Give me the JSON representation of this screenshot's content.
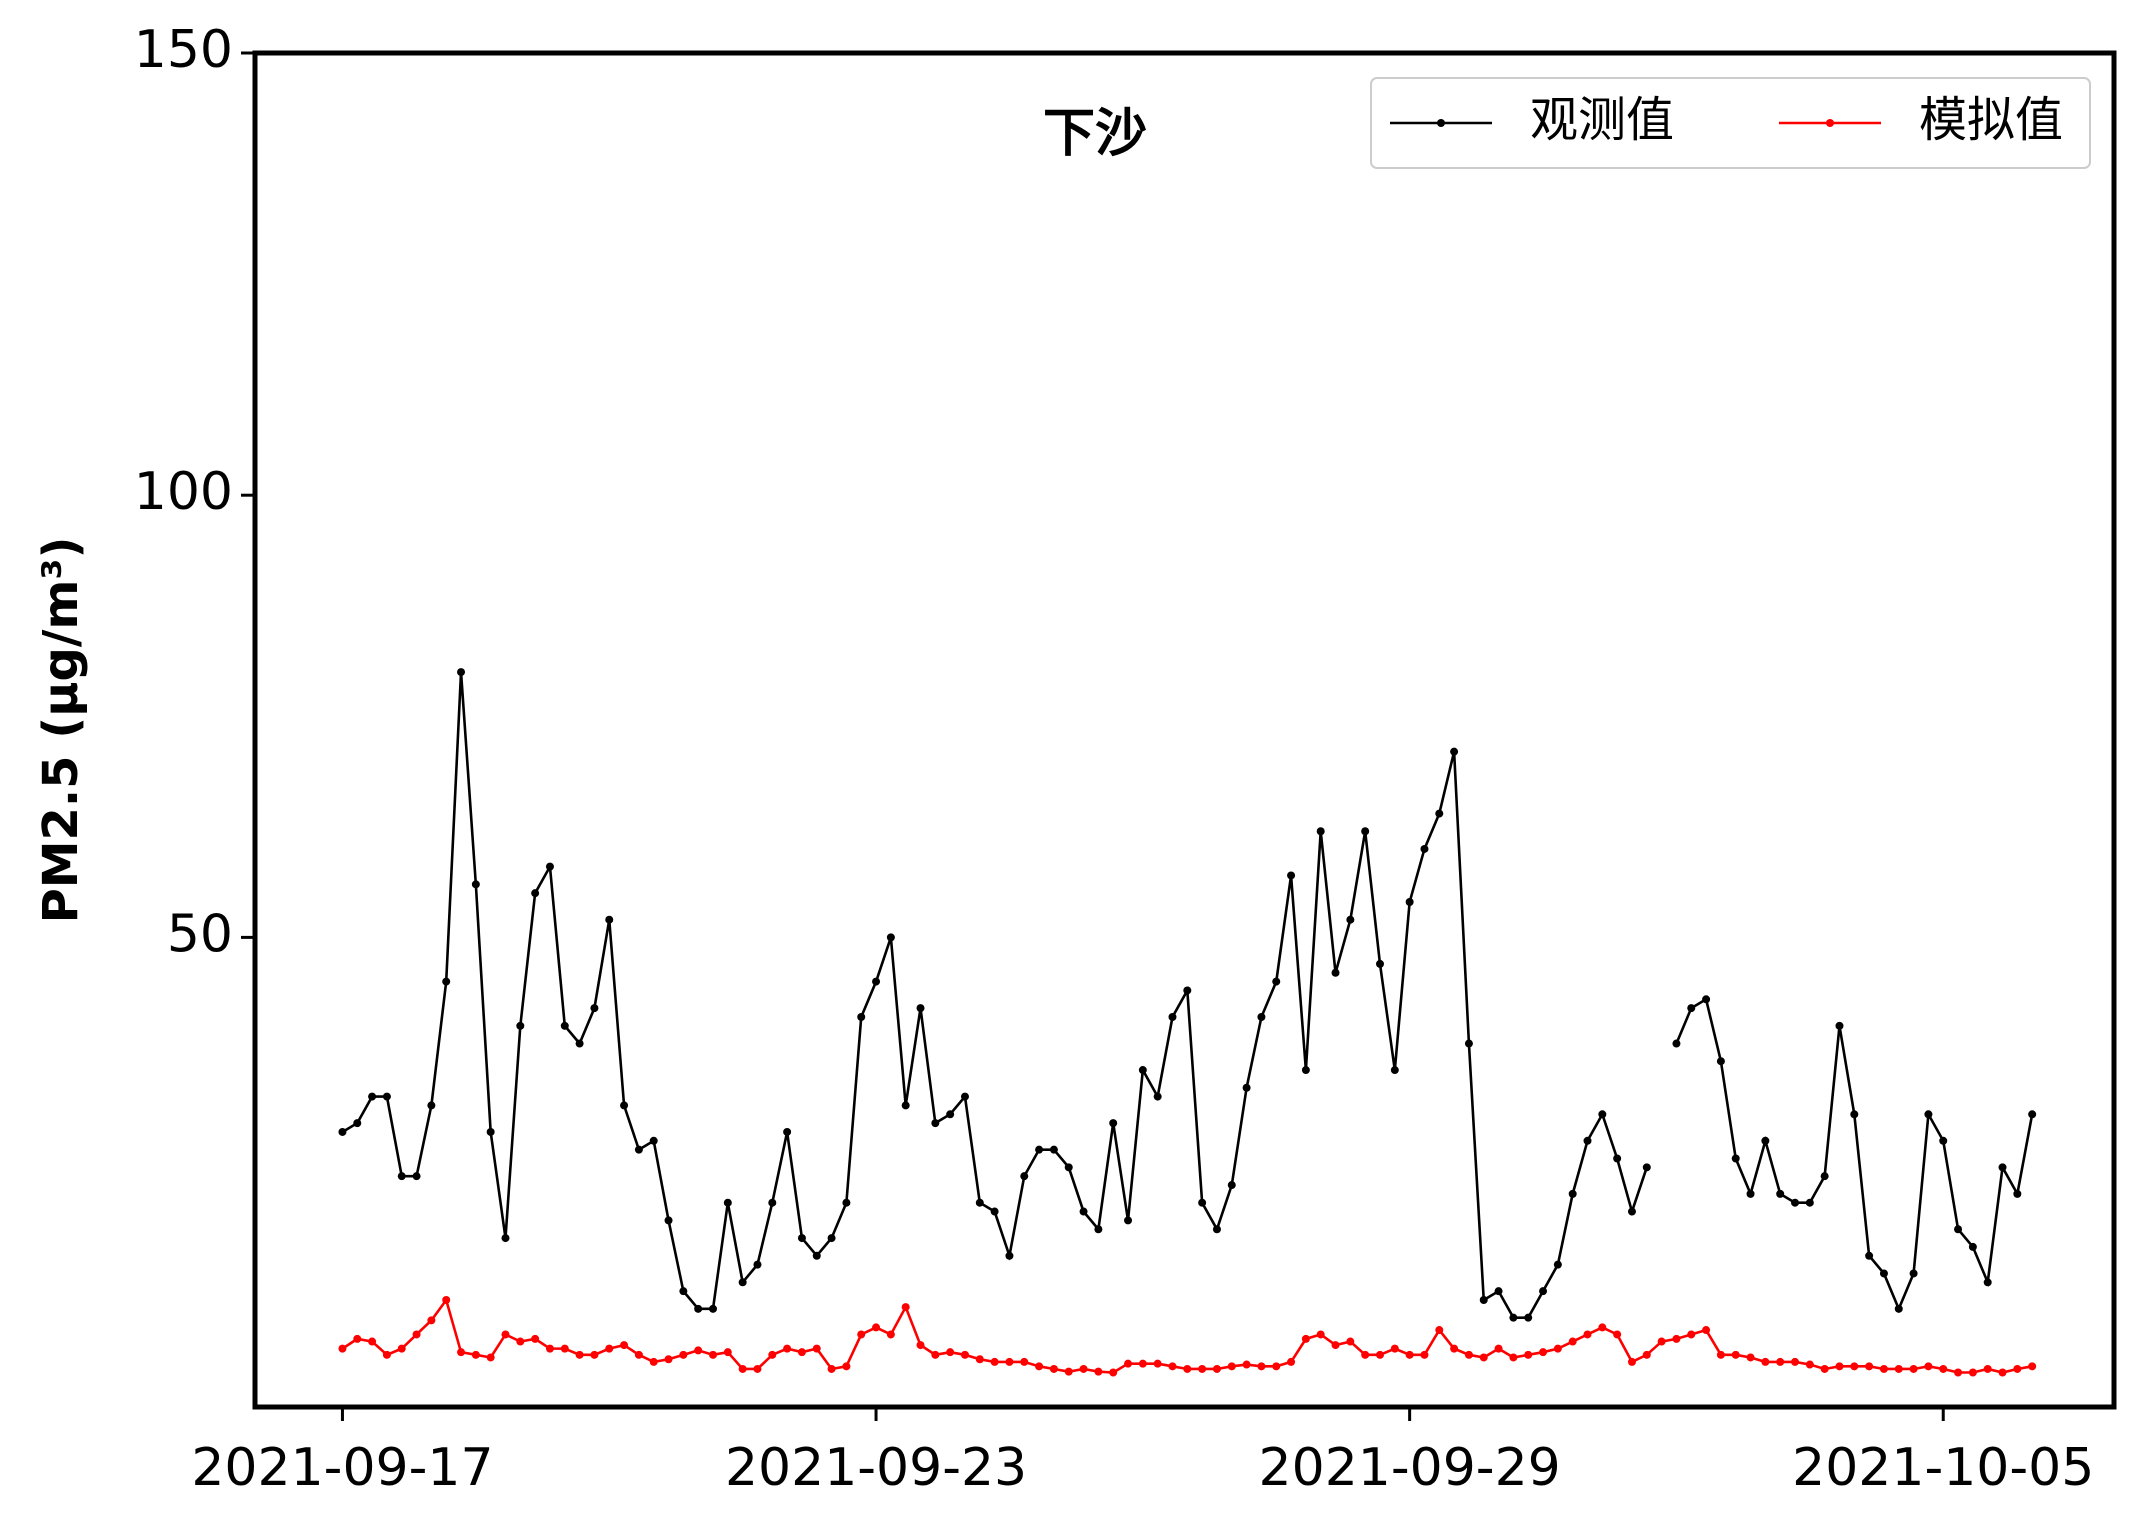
{
  "chart_data": {
    "type": "line",
    "title": "下沙",
    "y_label": "PM2.5 (μg/m³)",
    "x": [
      "2021-09-17 00:00",
      "2021-09-17 04:00",
      "2021-09-17 08:00",
      "2021-09-17 12:00",
      "2021-09-17 16:00",
      "2021-09-17 20:00",
      "2021-09-18 00:00",
      "2021-09-18 04:00",
      "2021-09-18 08:00",
      "2021-09-18 12:00",
      "2021-09-18 16:00",
      "2021-09-18 20:00",
      "2021-09-19 00:00",
      "2021-09-19 04:00",
      "2021-09-19 08:00",
      "2021-09-19 12:00",
      "2021-09-19 16:00",
      "2021-09-19 20:00",
      "2021-09-20 00:00",
      "2021-09-20 04:00",
      "2021-09-20 08:00",
      "2021-09-20 12:00",
      "2021-09-20 16:00",
      "2021-09-20 20:00",
      "2021-09-21 00:00",
      "2021-09-21 04:00",
      "2021-09-21 08:00",
      "2021-09-21 12:00",
      "2021-09-21 16:00",
      "2021-09-21 20:00",
      "2021-09-22 00:00",
      "2021-09-22 04:00",
      "2021-09-22 08:00",
      "2021-09-22 12:00",
      "2021-09-22 16:00",
      "2021-09-22 20:00",
      "2021-09-23 00:00",
      "2021-09-23 04:00",
      "2021-09-23 08:00",
      "2021-09-23 12:00",
      "2021-09-23 16:00",
      "2021-09-23 20:00",
      "2021-09-24 00:00",
      "2021-09-24 04:00",
      "2021-09-24 08:00",
      "2021-09-24 12:00",
      "2021-09-24 16:00",
      "2021-09-24 20:00",
      "2021-09-25 00:00",
      "2021-09-25 04:00",
      "2021-09-25 08:00",
      "2021-09-25 12:00",
      "2021-09-25 16:00",
      "2021-09-25 20:00",
      "2021-09-26 00:00",
      "2021-09-26 04:00",
      "2021-09-26 08:00",
      "2021-09-26 12:00",
      "2021-09-26 16:00",
      "2021-09-26 20:00",
      "2021-09-27 00:00",
      "2021-09-27 04:00",
      "2021-09-27 08:00",
      "2021-09-27 12:00",
      "2021-09-27 16:00",
      "2021-09-27 20:00",
      "2021-09-28 00:00",
      "2021-09-28 04:00",
      "2021-09-28 08:00",
      "2021-09-28 12:00",
      "2021-09-28 16:00",
      "2021-09-28 20:00",
      "2021-09-29 00:00",
      "2021-09-29 04:00",
      "2021-09-29 08:00",
      "2021-09-29 12:00",
      "2021-09-29 16:00",
      "2021-09-29 20:00",
      "2021-09-30 00:00",
      "2021-09-30 04:00",
      "2021-09-30 08:00",
      "2021-09-30 12:00",
      "2021-09-30 16:00",
      "2021-09-30 20:00",
      "2021-10-01 00:00",
      "2021-10-01 04:00",
      "2021-10-01 08:00",
      "2021-10-01 12:00",
      "2021-10-01 16:00",
      "2021-10-01 20:00",
      "2021-10-02 00:00",
      "2021-10-02 04:00",
      "2021-10-02 08:00",
      "2021-10-02 12:00",
      "2021-10-02 16:00",
      "2021-10-02 20:00",
      "2021-10-03 00:00",
      "2021-10-03 04:00",
      "2021-10-03 08:00",
      "2021-10-03 12:00",
      "2021-10-03 16:00",
      "2021-10-03 20:00",
      "2021-10-04 00:00",
      "2021-10-04 04:00",
      "2021-10-04 08:00",
      "2021-10-04 12:00",
      "2021-10-04 16:00",
      "2021-10-04 20:00",
      "2021-10-05 00:00",
      "2021-10-05 04:00",
      "2021-10-05 08:00",
      "2021-10-05 12:00",
      "2021-10-05 16:00",
      "2021-10-05 20:00",
      "2021-10-06 00:00"
    ],
    "series": [
      {
        "name": "观测值",
        "color": "#000000",
        "values": [
          28,
          29,
          32,
          32,
          23,
          23,
          31,
          45,
          80,
          56,
          28,
          16,
          40,
          55,
          58,
          40,
          38,
          42,
          52,
          31,
          26,
          27,
          18,
          10,
          8,
          8,
          20,
          11,
          13,
          20,
          28,
          16,
          14,
          16,
          20,
          41,
          45,
          50,
          31,
          42,
          29,
          30,
          32,
          20,
          19,
          14,
          23,
          26,
          26,
          24,
          19,
          17,
          29,
          18,
          35,
          32,
          41,
          44,
          20,
          17,
          22,
          33,
          41,
          45,
          57,
          35,
          62,
          46,
          52,
          62,
          47,
          35,
          54,
          60,
          64,
          71,
          38,
          9,
          10,
          7,
          7,
          10,
          13,
          21,
          27,
          30,
          25,
          19,
          24,
          null,
          38,
          42,
          43,
          36,
          25,
          21,
          27,
          21,
          20,
          20,
          23,
          40,
          30,
          14,
          12,
          8,
          12,
          30,
          27,
          17,
          15,
          11,
          24,
          21,
          30
        ]
      },
      {
        "name": "模拟值",
        "color": "#ff0000",
        "values": [
          3.5,
          4.6,
          4.3,
          2.8,
          3.5,
          5.1,
          6.7,
          9.0,
          3.1,
          2.8,
          2.5,
          5.1,
          4.3,
          4.6,
          3.5,
          3.5,
          2.8,
          2.8,
          3.5,
          3.9,
          2.8,
          2.0,
          2.3,
          2.8,
          3.3,
          2.8,
          3.1,
          1.2,
          1.2,
          2.8,
          3.5,
          3.1,
          3.5,
          1.2,
          1.5,
          5.1,
          5.9,
          5.1,
          8.2,
          3.9,
          2.8,
          3.1,
          2.8,
          2.3,
          2.0,
          2.0,
          2.0,
          1.5,
          1.2,
          0.9,
          1.2,
          0.9,
          0.8,
          1.8,
          1.8,
          1.8,
          1.5,
          1.2,
          1.2,
          1.2,
          1.5,
          1.7,
          1.5,
          1.5,
          2.0,
          4.6,
          5.1,
          3.9,
          4.3,
          2.8,
          2.8,
          3.5,
          2.8,
          2.8,
          5.6,
          3.5,
          2.8,
          2.5,
          3.5,
          2.5,
          2.8,
          3.1,
          3.5,
          4.3,
          5.1,
          5.9,
          5.1,
          2.0,
          2.8,
          4.3,
          4.6,
          5.1,
          5.6,
          2.8,
          2.8,
          2.5,
          2.0,
          2.0,
          2.0,
          1.7,
          1.2,
          1.5,
          1.5,
          1.5,
          1.2,
          1.2,
          1.2,
          1.5,
          1.2,
          0.8,
          0.8,
          1.2,
          0.8,
          1.2,
          1.5
        ]
      }
    ],
    "xlim": [
      "2021-09-16 00:24",
      "2021-10-06 22:05"
    ],
    "xticks": [
      "2021-09-17",
      "2021-09-23",
      "2021-09-29",
      "2021-10-05"
    ],
    "ylim": [
      -3.1,
      150
    ],
    "yticks": [
      50,
      100,
      150
    ],
    "grid": false,
    "legend": "upper right"
  }
}
